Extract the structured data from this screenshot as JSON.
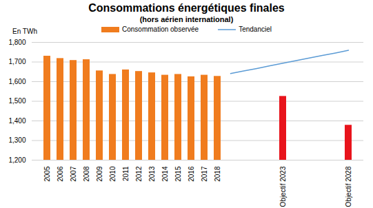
{
  "chart_data": {
    "type": "bar",
    "title": "Consommations énergétiques finales",
    "subtitle": "(hors aérien international)",
    "y_label": "En TWh",
    "categories": [
      "2005",
      "2006",
      "2007",
      "2008",
      "2009",
      "2010",
      "2011",
      "2012",
      "2013",
      "2014",
      "2015",
      "2016",
      "2017",
      "2018",
      null,
      null,
      null,
      null,
      "Objectif 2023",
      null,
      null,
      null,
      null,
      "Objectif 2028"
    ],
    "series": [
      {
        "name": "Consommation observée",
        "type": "bar",
        "color": "#f07c1e",
        "colors": [
          "#f07c1e",
          "#f07c1e",
          "#f07c1e",
          "#f07c1e",
          "#f07c1e",
          "#f07c1e",
          "#f07c1e",
          "#f07c1e",
          "#f07c1e",
          "#f07c1e",
          "#f07c1e",
          "#f07c1e",
          "#f07c1e",
          "#f07c1e",
          null,
          null,
          null,
          null,
          "#e8141c",
          null,
          null,
          null,
          null,
          "#e8141c"
        ],
        "values": [
          1730,
          1718,
          1708,
          1712,
          1655,
          1637,
          1660,
          1652,
          1645,
          1633,
          1637,
          1625,
          1633,
          1627,
          null,
          null,
          null,
          null,
          1525,
          null,
          null,
          null,
          null,
          1378
        ]
      },
      {
        "name": "Tendanciel",
        "type": "line",
        "color": "#5b9bd5",
        "values": [
          null,
          null,
          null,
          null,
          null,
          null,
          null,
          null,
          null,
          null,
          null,
          null,
          null,
          null,
          1641,
          1654,
          1667,
          1681,
          1694,
          1707,
          1720,
          1733,
          1746,
          1760
        ]
      }
    ],
    "ylim": [
      1200,
      1800
    ],
    "yticks": [
      1200,
      1300,
      1400,
      1500,
      1600,
      1700,
      1800
    ],
    "grid": true
  }
}
